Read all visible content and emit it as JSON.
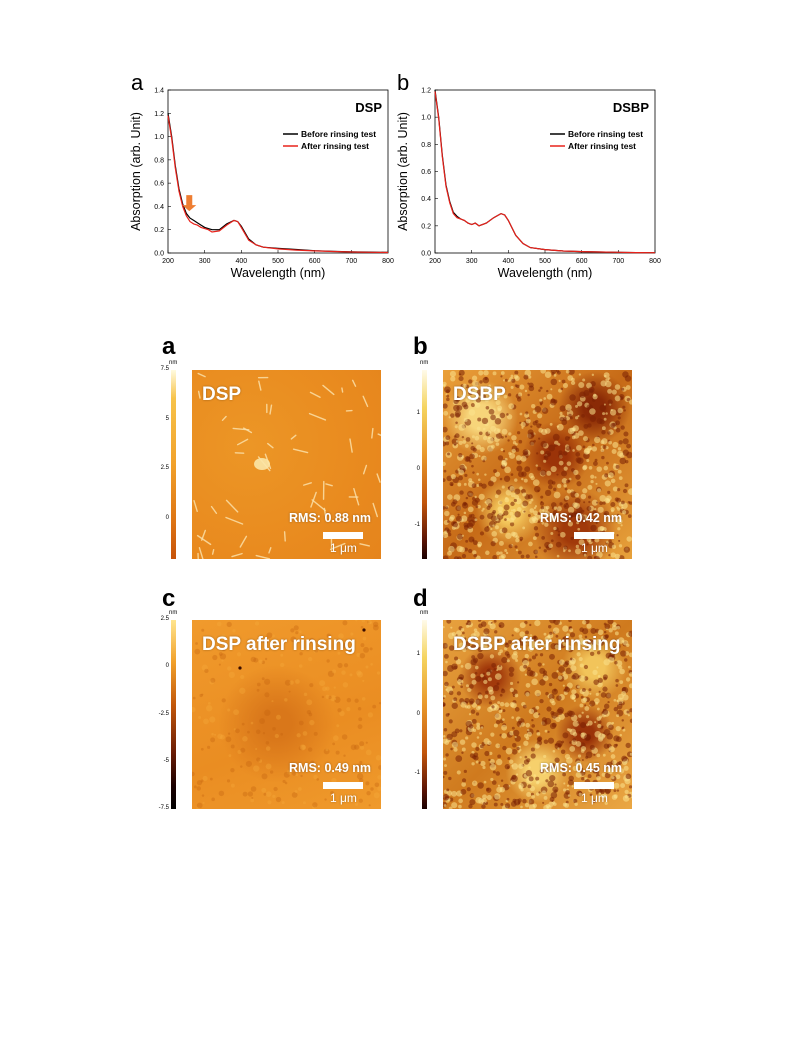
{
  "spectra": {
    "panels": [
      {
        "letter": "a",
        "label": "DSP"
      },
      {
        "letter": "b",
        "label": "DSBP"
      }
    ],
    "legend": [
      "Before rinsing test",
      "After rinsing test"
    ],
    "colors": {
      "before": "#000000",
      "after": "#e8221b",
      "arrow": "#ee7d31"
    }
  },
  "chart_data": [
    {
      "type": "line",
      "title": "DSP",
      "xlabel": "Wavelength (nm)",
      "ylabel": "Absorption (arb. Unit)",
      "xlim": [
        200,
        800
      ],
      "ylim": [
        0.0,
        1.4
      ],
      "xticks": [
        "200",
        "300",
        "400",
        "500",
        "600",
        "700",
        "800"
      ],
      "yticks": [
        "0.0",
        "0.2",
        "0.4",
        "0.6",
        "0.8",
        "1.0",
        "1.2",
        "1.4"
      ],
      "legend_position": "top-right",
      "annotation": "arrow near 260 nm",
      "series": [
        {
          "name": "Before rinsing test",
          "x": [
            200,
            210,
            220,
            230,
            240,
            250,
            260,
            270,
            280,
            290,
            300,
            310,
            320,
            340,
            360,
            380,
            390,
            400,
            420,
            440,
            460,
            500,
            550,
            600,
            650,
            700,
            750,
            800
          ],
          "y": [
            1.2,
            1.0,
            0.75,
            0.55,
            0.42,
            0.34,
            0.3,
            0.28,
            0.26,
            0.24,
            0.22,
            0.21,
            0.2,
            0.2,
            0.25,
            0.28,
            0.27,
            0.23,
            0.12,
            0.07,
            0.05,
            0.04,
            0.03,
            0.02,
            0.015,
            0.01,
            0.008,
            0.005
          ]
        },
        {
          "name": "After rinsing test",
          "x": [
            200,
            210,
            220,
            230,
            240,
            250,
            260,
            270,
            280,
            290,
            300,
            310,
            320,
            340,
            360,
            380,
            390,
            400,
            420,
            440,
            460,
            500,
            550,
            600,
            650,
            700,
            750,
            800
          ],
          "y": [
            1.18,
            0.98,
            0.73,
            0.53,
            0.4,
            0.32,
            0.27,
            0.25,
            0.24,
            0.22,
            0.21,
            0.2,
            0.18,
            0.19,
            0.24,
            0.28,
            0.27,
            0.22,
            0.11,
            0.07,
            0.05,
            0.035,
            0.025,
            0.018,
            0.013,
            0.009,
            0.006,
            0.004
          ]
        }
      ]
    },
    {
      "type": "line",
      "title": "DSBP",
      "xlabel": "Wavelength (nm)",
      "ylabel": "Absorption (arb. Unit)",
      "xlim": [
        200,
        800
      ],
      "ylim": [
        0.0,
        1.2
      ],
      "xticks": [
        "200",
        "300",
        "400",
        "500",
        "600",
        "700",
        "800"
      ],
      "yticks": [
        "0.0",
        "0.2",
        "0.4",
        "0.6",
        "0.8",
        "1.0",
        "1.2"
      ],
      "legend_position": "top-right",
      "series": [
        {
          "name": "Before rinsing test",
          "x": [
            200,
            210,
            220,
            230,
            240,
            250,
            260,
            270,
            280,
            290,
            300,
            310,
            320,
            340,
            360,
            380,
            390,
            400,
            420,
            440,
            460,
            500,
            550,
            600,
            650,
            700,
            750,
            800
          ],
          "y": [
            1.2,
            1.0,
            0.72,
            0.5,
            0.38,
            0.3,
            0.27,
            0.25,
            0.24,
            0.22,
            0.21,
            0.22,
            0.2,
            0.22,
            0.26,
            0.29,
            0.28,
            0.24,
            0.13,
            0.07,
            0.04,
            0.025,
            0.015,
            0.01,
            0.007,
            0.005,
            0.003,
            0.002
          ]
        },
        {
          "name": "After rinsing test",
          "x": [
            200,
            210,
            220,
            230,
            240,
            250,
            260,
            270,
            280,
            290,
            300,
            310,
            320,
            340,
            360,
            380,
            390,
            400,
            420,
            440,
            460,
            500,
            550,
            600,
            650,
            700,
            750,
            800
          ],
          "y": [
            1.19,
            0.99,
            0.71,
            0.49,
            0.37,
            0.29,
            0.26,
            0.25,
            0.24,
            0.22,
            0.21,
            0.22,
            0.2,
            0.22,
            0.26,
            0.29,
            0.28,
            0.24,
            0.13,
            0.07,
            0.04,
            0.025,
            0.015,
            0.01,
            0.007,
            0.005,
            0.003,
            0.002
          ]
        }
      ]
    }
  ],
  "afm": {
    "unit": "nm",
    "scale_label": "1 μm",
    "panels": [
      {
        "letter": "a",
        "title": "DSP",
        "rms": "RMS: 0.88 nm",
        "cbar_ticks": [
          "7.5",
          "5",
          "2.5",
          "0"
        ],
        "cbar_values": [
          7.5,
          5,
          2.5,
          0
        ],
        "cbar_range": [
          -2,
          7.5
        ]
      },
      {
        "letter": "b",
        "title": "DSBP",
        "rms": "RMS: 0.42 nm",
        "cbar_ticks": [
          "1",
          "0",
          "-1"
        ],
        "cbar_values": [
          1,
          0,
          -1
        ],
        "cbar_range": [
          -1.6,
          1.8
        ]
      },
      {
        "letter": "c",
        "title": "DSP after rinsing",
        "rms": "RMS: 0.49 nm",
        "cbar_ticks": [
          "2.5",
          "0",
          "-2.5",
          "-5",
          "-7.5"
        ],
        "cbar_values": [
          2.5,
          0,
          -2.5,
          -5,
          -7.5
        ],
        "cbar_range": [
          -7.5,
          2.5
        ]
      },
      {
        "letter": "d",
        "title": "DSBP after rinsing",
        "rms": "RMS: 0.45 nm",
        "cbar_ticks": [
          "1",
          "0",
          "-1"
        ],
        "cbar_values": [
          1,
          0,
          -1
        ],
        "cbar_range": [
          -1.6,
          1.6
        ]
      }
    ]
  }
}
